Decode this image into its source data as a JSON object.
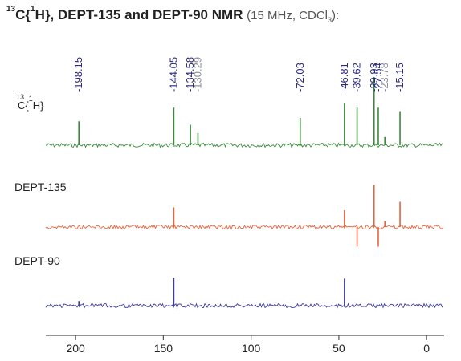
{
  "header": {
    "iso_sup": "13",
    "nucleus": "C{",
    "h_sup": "1",
    "title_main": "H}, DEPT-135 and DEPT-90 NMR",
    "conditions_before_sub": "(15 MHz, CDCl",
    "conditions_sub": "3",
    "conditions_after_sub": "):"
  },
  "colors": {
    "c13": "#3a8a3a",
    "dept135": "#e8623a",
    "dept90": "#3a3aa0",
    "label_dark": "#2a2a80",
    "label_gray": "#8a8a9a",
    "axis": "#555555"
  },
  "chart_data": [
    {
      "type": "line",
      "name": "13C{1H}",
      "label_parts": {
        "iso": "13",
        "core": "C{",
        "h": "1",
        "end": "H}"
      },
      "xlabel": "",
      "xlim": [
        -10,
        217
      ],
      "x_reversed": true,
      "peaks": [
        {
          "x": 198.15,
          "y": 0.35
        },
        {
          "x": 144.05,
          "y": 0.55
        },
        {
          "x": 134.58,
          "y": 0.3
        },
        {
          "x": 130.29,
          "y": 0.18
        },
        {
          "x": 72.03,
          "y": 0.4
        },
        {
          "x": 46.81,
          "y": 0.62
        },
        {
          "x": 39.62,
          "y": 0.55
        },
        {
          "x": 29.93,
          "y": 1.0
        },
        {
          "x": 27.54,
          "y": 0.55
        },
        {
          "x": 23.78,
          "y": 0.12
        },
        {
          "x": 15.15,
          "y": 0.5
        }
      ]
    },
    {
      "type": "line",
      "name": "DEPT-135",
      "xlim": [
        -10,
        217
      ],
      "x_reversed": true,
      "peaks": [
        {
          "x": 144.05,
          "y": 0.35
        },
        {
          "x": 46.81,
          "y": 0.3
        },
        {
          "x": 39.62,
          "y": -0.35
        },
        {
          "x": 29.93,
          "y": 0.75
        },
        {
          "x": 27.54,
          "y": -0.35
        },
        {
          "x": 23.78,
          "y": 0.1
        },
        {
          "x": 15.15,
          "y": 0.45
        }
      ]
    },
    {
      "type": "line",
      "name": "DEPT-90",
      "xlim": [
        -10,
        217
      ],
      "x_reversed": true,
      "peaks": [
        {
          "x": 198.15,
          "y": 0.1
        },
        {
          "x": 144.05,
          "y": 0.6
        },
        {
          "x": 46.81,
          "y": 0.58
        }
      ]
    }
  ],
  "peak_labels": [
    {
      "text": "-198.15",
      "x": 198.15,
      "shade": "dark"
    },
    {
      "text": "-144.05",
      "x": 144.05,
      "shade": "dark"
    },
    {
      "text": "-134.58",
      "x": 134.58,
      "shade": "dark"
    },
    {
      "text": "-130.29",
      "x": 130.29,
      "shade": "gray"
    },
    {
      "text": "-72.03",
      "x": 72.03,
      "shade": "dark"
    },
    {
      "text": "-46.81",
      "x": 46.81,
      "shade": "dark"
    },
    {
      "text": "-39.62",
      "x": 39.62,
      "shade": "dark"
    },
    {
      "text": "-29.93",
      "x": 29.93,
      "shade": "dark"
    },
    {
      "text": "-27.54",
      "x": 27.54,
      "shade": "dark"
    },
    {
      "text": "-23.78",
      "x": 23.78,
      "shade": "gray"
    },
    {
      "text": "-15.15",
      "x": 15.15,
      "shade": "dark"
    }
  ],
  "axis": {
    "ticks": [
      200,
      150,
      100,
      50,
      0
    ],
    "tick_labels": [
      "200",
      "150",
      "100",
      "50",
      "0"
    ]
  }
}
